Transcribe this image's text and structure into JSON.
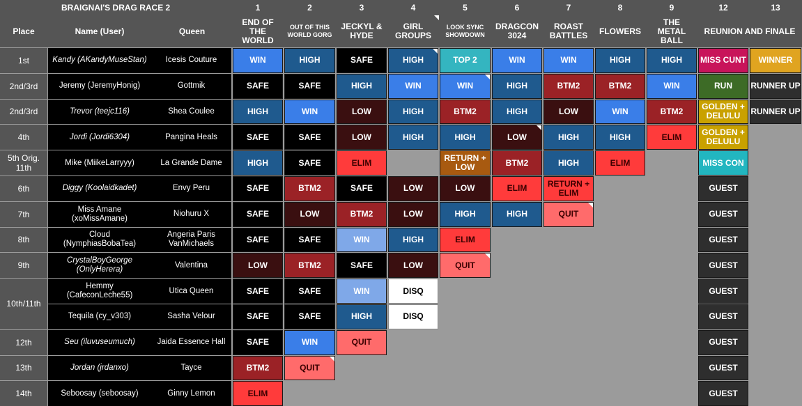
{
  "title": "BRAIGNAI'S DRAG RACE 2",
  "headers": {
    "place": "Place",
    "name": "Name (User)",
    "queen": "Queen"
  },
  "episodes": [
    {
      "num": "1",
      "name": "END OF THE WORLD",
      "small": false
    },
    {
      "num": "2",
      "name": "OUT OF THIS WORLD GORG",
      "small": true
    },
    {
      "num": "3",
      "name": "JECKYL & HYDE",
      "small": false
    },
    {
      "num": "4",
      "name": "GIRL GROUPS",
      "small": false
    },
    {
      "num": "5",
      "name": "LOOK SYNC SHOWDOWN",
      "small": true
    },
    {
      "num": "6",
      "name": "DRAGCON 3024",
      "small": false
    },
    {
      "num": "7",
      "name": "ROAST BATTLES",
      "small": false
    },
    {
      "num": "8",
      "name": "FLOWERS",
      "small": false
    },
    {
      "num": "9",
      "name": "THE METAL BALL",
      "small": false
    },
    {
      "num": "12",
      "name": "REUNION AND FINALE",
      "small": false
    },
    {
      "num": "13",
      "name": "",
      "small": false
    }
  ],
  "colors": {
    "WIN": "#3a7ee8",
    "HIGH": "#1f5a8e",
    "SAFE": "#000000",
    "LOW": "#3a0f10",
    "BTM2": "#9b2226",
    "ELIM": "#ff3b3b",
    "QUIT": "#ff6b6b",
    "WIN_LIGHT": "#7fa8e8",
    "DISQ": "#ffffff",
    "TOP 2": "#34b5c0",
    "RETURN + LOW": "#a85a10",
    "RETURN + ELIM": "#ff3b3b",
    "MISS CUNT": "#c8145a",
    "WINNER": "#e0a420",
    "RUN": "#3d6b26",
    "RUNNER UP": "#2e2e2e",
    "GOLDEN + DELULU": "#c9a100",
    "MISS CON": "#22b6c0",
    "GUEST": "#2e2e2e"
  },
  "contestants": [
    {
      "place": "1st",
      "name": "Kandy (AKandyMuseStan)",
      "italic": true,
      "queen": "Icesis Couture",
      "results": [
        "WIN",
        "HIGH",
        "SAFE",
        "HIGH",
        "TOP 2",
        "WIN",
        "WIN",
        "HIGH",
        "HIGH",
        "MISS CUNT",
        "WINNER"
      ]
    },
    {
      "place": "2nd/3rd",
      "name": "Jeremy (JeremyHonig)",
      "italic": false,
      "queen": "Gottmik",
      "results": [
        "SAFE",
        "SAFE",
        "HIGH",
        "WIN",
        "WIN",
        "HIGH",
        "BTM2",
        "BTM2",
        "WIN",
        "RUN",
        "RUNNER UP"
      ]
    },
    {
      "place": "2nd/3rd",
      "name": "Trevor (teejc116)",
      "italic": true,
      "queen": "Shea Coulee",
      "results": [
        "HIGH",
        "WIN",
        "LOW",
        "HIGH",
        "BTM2",
        "HIGH",
        "LOW",
        "WIN",
        "BTM2",
        "GOLDEN + DELULU",
        "RUNNER UP"
      ]
    },
    {
      "place": "4th",
      "name": "Jordi (Jordi6304)",
      "italic": true,
      "queen": "Pangina Heals",
      "results": [
        "SAFE",
        "SAFE",
        "LOW",
        "HIGH",
        "HIGH",
        "LOW",
        "HIGH",
        "HIGH",
        "ELIM",
        "GOLDEN + DELULU",
        ""
      ]
    },
    {
      "place": "5th Orig. 11th",
      "name": "Mike (MiikeLarryyy)",
      "italic": false,
      "queen": "La Grande Dame",
      "results": [
        "HIGH",
        "SAFE",
        "ELIM",
        "",
        "RETURN + LOW",
        "BTM2",
        "HIGH",
        "ELIM",
        "",
        "MISS CON",
        ""
      ]
    },
    {
      "place": "6th",
      "name": "Diggy (Koolaidkadet)",
      "italic": true,
      "queen": "Envy Peru",
      "results": [
        "SAFE",
        "BTM2",
        "SAFE",
        "LOW",
        "LOW",
        "ELIM",
        "RETURN + ELIM",
        "",
        "",
        "GUEST",
        ""
      ]
    },
    {
      "place": "7th",
      "name": "Miss Amane (xoMissAmane)",
      "italic": false,
      "queen": "Niohuru X",
      "results": [
        "SAFE",
        "LOW",
        "BTM2",
        "LOW",
        "HIGH",
        "HIGH",
        "QUIT",
        "",
        "",
        "GUEST",
        ""
      ]
    },
    {
      "place": "8th",
      "name": "Cloud (NymphiasBobaTea)",
      "italic": false,
      "queen": "Angeria Paris VanMichaels",
      "results": [
        "SAFE",
        "SAFE",
        "WIN",
        "HIGH",
        "ELIM",
        "",
        "",
        "",
        "",
        "GUEST",
        ""
      ]
    },
    {
      "place": "9th",
      "name": "CrystalBoyGeorge (OnlyHerera)",
      "italic": true,
      "queen": "Valentina",
      "results": [
        "LOW",
        "BTM2",
        "SAFE",
        "LOW",
        "QUIT",
        "",
        "",
        "",
        "",
        "GUEST",
        ""
      ]
    },
    {
      "place": "10th/11th",
      "name": "Hemmy (CafeconLeche55)",
      "italic": false,
      "queen": "Utica Queen",
      "results": [
        "SAFE",
        "SAFE",
        "WIN",
        "DISQ",
        "",
        "",
        "",
        "",
        "",
        "GUEST",
        ""
      ]
    },
    {
      "place": "",
      "name": "Tequila (cy_v303)",
      "italic": false,
      "queen": "Sasha Velour",
      "results": [
        "SAFE",
        "SAFE",
        "HIGH",
        "DISQ",
        "",
        "",
        "",
        "",
        "",
        "GUEST",
        ""
      ]
    },
    {
      "place": "12th",
      "name": "Seu (iluvuseumuch)",
      "italic": true,
      "queen": "Jaida Essence Hall",
      "results": [
        "SAFE",
        "WIN",
        "QUIT",
        "",
        "",
        "",
        "",
        "",
        "",
        "GUEST",
        ""
      ]
    },
    {
      "place": "13th",
      "name": "Jordan (jrdanxo)",
      "italic": true,
      "queen": "Tayce",
      "results": [
        "BTM2",
        "QUIT",
        "",
        "",
        "",
        "",
        "",
        "",
        "",
        "GUEST",
        ""
      ]
    },
    {
      "place": "14th",
      "name": "Seboosay (seboosay)",
      "italic": false,
      "queen": "Ginny Lemon",
      "results": [
        "ELIM",
        "",
        "",
        "",
        "",
        "",
        "",
        "",
        "",
        "GUEST",
        ""
      ]
    }
  ]
}
